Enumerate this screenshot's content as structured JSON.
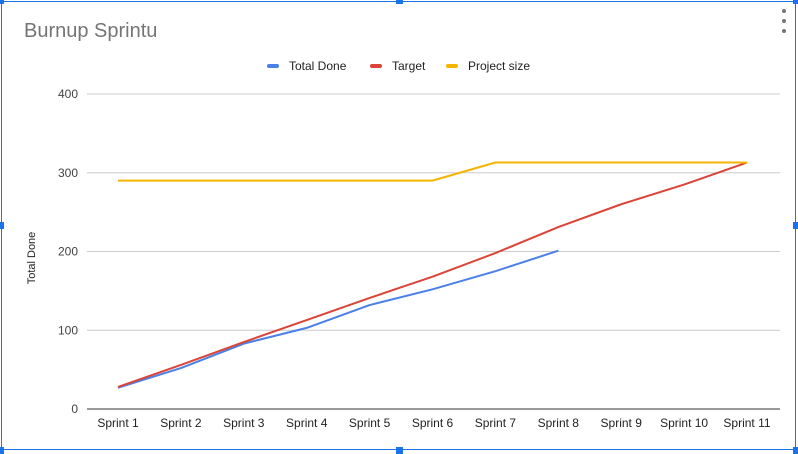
{
  "chart_data": {
    "type": "line",
    "title": "Burnup Sprintu",
    "ylabel": "Total Done",
    "xlabel": "",
    "ylim": [
      0,
      400
    ],
    "yticks": [
      0,
      100,
      200,
      300,
      400
    ],
    "grid": true,
    "legend_position": "top",
    "categories": [
      "Sprint 1",
      "Sprint 2",
      "Sprint 3",
      "Sprint 4",
      "Sprint 5",
      "Sprint 6",
      "Sprint 7",
      "Sprint 8",
      "Sprint 9",
      "Sprint 10",
      "Sprint 11"
    ],
    "series": [
      {
        "name": "Total Done",
        "color": "#4a80e8",
        "values": [
          27,
          52,
          83,
          103,
          132,
          152,
          175,
          201,
          null,
          null,
          null
        ]
      },
      {
        "name": "Target",
        "color": "#db4437",
        "values": [
          28,
          56,
          85,
          113,
          141,
          168,
          198,
          231,
          260,
          285,
          313
        ]
      },
      {
        "name": "Project size",
        "color": "#f4b400",
        "values": [
          290,
          290,
          290,
          290,
          290,
          290,
          313,
          313,
          313,
          313,
          313
        ]
      }
    ]
  },
  "colors": {
    "frame": "#1a73e8",
    "grid": "#cccccc",
    "axis": "#333333",
    "title": "#757575"
  },
  "icons": {
    "menu": "more-vert-icon"
  }
}
